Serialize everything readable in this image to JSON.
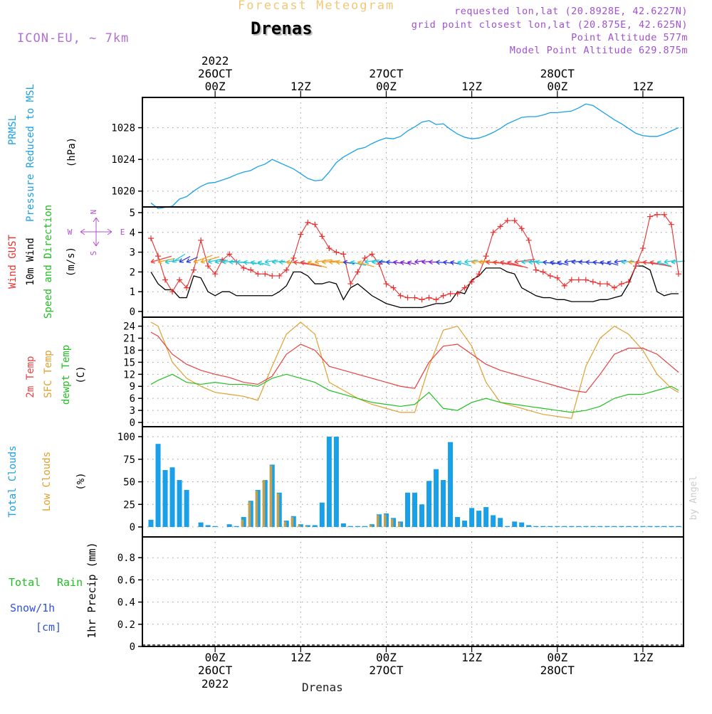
{
  "header": {
    "title": "Forecast Meteogram",
    "station": "Drenas",
    "model": "ICON-EU, ~ 7km",
    "requested": "requested lon,lat (20.8928E, 42.6227N)",
    "grid_point": "grid point closest lon,lat (20.875E, 42.625N)",
    "point_altitude": "Point Altitude 577m",
    "model_altitude": "Model Point Altitude 629.875m",
    "footer_station": "Drenas",
    "credit": "by Angel"
  },
  "time_axis": {
    "labels": [
      "00Z",
      "12Z",
      "00Z",
      "12Z",
      "00Z",
      "12Z"
    ],
    "dates": [
      {
        "year": "2022",
        "day": "26OCT"
      },
      {
        "year": "",
        "day": "27OCT"
      },
      {
        "year": "",
        "day": "28OCT"
      }
    ]
  },
  "colors": {
    "pressure": "#1aa0e8",
    "gust": "#e83030",
    "wind": "#000000",
    "wind_label": "#20c020",
    "temp2m": "#e84040",
    "sfc_temp": "#e0a030",
    "dewpt": "#20c020",
    "total_clouds": "#1aa0e8",
    "low_clouds": "#e0a030",
    "rain": "#20c020",
    "snow": "#3050e0",
    "compass": "#b050d0"
  },
  "chart_data": [
    {
      "type": "line",
      "panel": "pressure",
      "labels": {
        "line1": "PRMSL",
        "line2": "Pressure Reduced to MSL",
        "unit": "(hPa)"
      },
      "x_hours_from_26OCT_00Z": [
        -9,
        -8,
        -6,
        -5,
        -4,
        -3,
        -2,
        -1,
        0,
        1,
        2,
        3,
        4,
        5,
        6,
        7,
        8,
        9,
        10,
        11,
        12,
        13,
        14,
        15,
        16,
        17,
        18,
        19,
        20,
        21,
        22,
        23,
        24,
        25,
        26,
        27,
        28,
        29,
        30,
        31,
        32,
        33,
        34,
        35,
        36,
        37,
        38,
        39,
        40,
        41,
        42,
        43,
        44,
        45,
        46,
        47,
        48,
        49,
        50,
        51,
        52,
        53,
        54,
        55,
        56,
        57,
        58,
        59,
        60,
        61,
        62,
        63,
        64,
        65
      ],
      "y": [
        1018.5,
        1017.8,
        1018.1,
        1019.0,
        1019.3,
        1020.0,
        1020.6,
        1021.0,
        1021.1,
        1021.4,
        1021.7,
        1022.1,
        1022.4,
        1022.6,
        1023.1,
        1023.4,
        1024.0,
        1023.6,
        1023.2,
        1022.8,
        1022.2,
        1021.6,
        1021.3,
        1021.4,
        1022.4,
        1023.6,
        1024.3,
        1024.8,
        1025.3,
        1025.5,
        1026.0,
        1026.4,
        1026.7,
        1026.6,
        1026.9,
        1027.6,
        1028.1,
        1028.7,
        1028.9,
        1028.4,
        1028.5,
        1027.8,
        1027.2,
        1026.8,
        1026.6,
        1026.7,
        1027.0,
        1027.4,
        1027.9,
        1028.5,
        1028.9,
        1029.3,
        1029.4,
        1029.4,
        1029.6,
        1029.9,
        1029.9,
        1030.0,
        1030.1,
        1030.5,
        1031.0,
        1030.8,
        1030.2,
        1029.6,
        1029.0,
        1028.5,
        1027.9,
        1027.3,
        1027.0,
        1026.9,
        1026.9,
        1027.2,
        1027.6,
        1028.0
      ],
      "ylim": [
        1018,
        1032
      ],
      "yticks": [
        1020,
        1024,
        1028
      ]
    },
    {
      "type": "line",
      "panel": "wind",
      "labels": {
        "gust": "Wind GUST",
        "wind": "10m Wind",
        "dir": "Speed and Direction",
        "unit": "(m/s)"
      },
      "compass": {
        "n": "N",
        "s": "S",
        "w": "W",
        "e": "E"
      },
      "x_hours_from_26OCT_00Z": [
        -9,
        -8,
        -7,
        -6,
        -5,
        -4,
        -3,
        -2,
        -1,
        0,
        1,
        2,
        3,
        4,
        5,
        6,
        7,
        8,
        9,
        10,
        11,
        12,
        13,
        14,
        15,
        16,
        17,
        18,
        19,
        20,
        21,
        22,
        23,
        24,
        25,
        26,
        27,
        28,
        29,
        30,
        31,
        32,
        33,
        34,
        35,
        36,
        37,
        38,
        39,
        40,
        41,
        42,
        43,
        44,
        45,
        46,
        47,
        48,
        49,
        50,
        51,
        52,
        53,
        54,
        55,
        56,
        57,
        58,
        59,
        60,
        61,
        62,
        63,
        64,
        65
      ],
      "gust": [
        3.7,
        2.8,
        1.6,
        1.0,
        1.6,
        1.2,
        2.1,
        3.6,
        2.3,
        1.9,
        2.6,
        2.9,
        2.5,
        2.2,
        2.1,
        1.9,
        1.9,
        1.8,
        1.8,
        2.1,
        2.7,
        3.9,
        4.5,
        4.4,
        3.8,
        3.2,
        3.0,
        2.9,
        1.4,
        2.0,
        2.7,
        2.9,
        2.4,
        1.4,
        1.2,
        0.8,
        0.7,
        0.7,
        0.6,
        0.7,
        0.6,
        0.8,
        0.9,
        0.9,
        1.2,
        1.5,
        1.9,
        2.8,
        4.0,
        4.3,
        4.6,
        4.6,
        4.2,
        3.6,
        2.1,
        2.0,
        1.8,
        1.7,
        1.3,
        1.6,
        1.6,
        1.6,
        1.5,
        1.4,
        1.4,
        1.2,
        1.4,
        1.5,
        2.3,
        3.2,
        4.8,
        4.9,
        4.9,
        4.4,
        1.9
      ],
      "wind": [
        2.0,
        1.4,
        1.1,
        1.1,
        0.7,
        0.7,
        1.8,
        1.7,
        1.0,
        0.8,
        1.0,
        1.0,
        0.8,
        0.8,
        0.8,
        0.8,
        0.8,
        0.8,
        1.0,
        1.3,
        2.0,
        2.0,
        1.8,
        1.4,
        1.4,
        1.5,
        1.4,
        0.6,
        1.2,
        1.4,
        1.1,
        0.8,
        0.6,
        0.4,
        0.3,
        0.2,
        0.2,
        0.2,
        0.2,
        0.3,
        0.4,
        0.4,
        0.5,
        1.0,
        0.9,
        1.6,
        1.8,
        2.2,
        2.2,
        2.2,
        2.0,
        1.9,
        1.2,
        1.0,
        0.8,
        0.7,
        0.7,
        0.6,
        0.6,
        0.5,
        0.5,
        0.5,
        0.5,
        0.6,
        0.6,
        0.7,
        0.8,
        1.4,
        2.3,
        2.3,
        2.1,
        1.0,
        0.8,
        0.9,
        0.9
      ],
      "ylim": [
        0,
        5
      ],
      "yticks": [
        0,
        1,
        2,
        3,
        4,
        5
      ]
    },
    {
      "type": "line",
      "panel": "temperature",
      "labels": {
        "t2m": "2m Temp",
        "sfc": "SFC Temp",
        "dew": "dewpt Temp",
        "unit": "(C)"
      },
      "x_hours_from_26OCT_00Z": [
        -9,
        -8,
        -6,
        -4,
        -2,
        0,
        2,
        4,
        6,
        8,
        10,
        12,
        14,
        16,
        18,
        20,
        22,
        24,
        26,
        28,
        30,
        32,
        34,
        36,
        38,
        40,
        42,
        44,
        46,
        48,
        50,
        52,
        54,
        56,
        58,
        60,
        62,
        64,
        65
      ],
      "t2m": [
        22.5,
        21.5,
        17.0,
        14.5,
        13.0,
        12.0,
        11.2,
        10.0,
        9.5,
        11.5,
        17.0,
        19.5,
        18.0,
        14.0,
        13.0,
        12.0,
        11.0,
        10.0,
        9.0,
        8.5,
        15.0,
        19.0,
        19.5,
        17.0,
        14.5,
        13.0,
        12.0,
        11.0,
        10.0,
        9.0,
        8.0,
        7.5,
        12.0,
        17.0,
        18.5,
        18.5,
        17.0,
        14.0,
        12.5
      ],
      "sfc": [
        25.0,
        24.0,
        15.0,
        11.0,
        9.0,
        7.5,
        7.0,
        6.5,
        5.5,
        14.0,
        22.0,
        25.0,
        22.0,
        10.0,
        8.0,
        6.0,
        4.5,
        3.5,
        2.5,
        2.5,
        14.0,
        23.0,
        24.0,
        19.0,
        10.0,
        5.0,
        4.0,
        3.0,
        2.0,
        1.5,
        1.0,
        14.0,
        21.0,
        24.0,
        22.0,
        18.0,
        12.0,
        8.5,
        7.5
      ],
      "dewpt": [
        9.5,
        10.5,
        12.0,
        10.0,
        9.5,
        10.0,
        9.5,
        9.5,
        9.0,
        11.0,
        12.0,
        11.0,
        10.0,
        8.0,
        7.0,
        6.0,
        5.0,
        4.5,
        4.0,
        4.5,
        7.5,
        3.5,
        3.0,
        5.0,
        6.0,
        5.0,
        4.5,
        4.0,
        3.5,
        3.0,
        2.5,
        3.0,
        4.0,
        6.0,
        7.0,
        7.0,
        8.0,
        9.0,
        8.0
      ],
      "ylim": [
        0,
        25
      ],
      "yticks": [
        0,
        3,
        6,
        9,
        12,
        15,
        18,
        21,
        24
      ]
    },
    {
      "type": "bar",
      "panel": "clouds",
      "labels": {
        "total": "Total Clouds",
        "low": "Low Clouds",
        "unit": "(%)"
      },
      "x_hours_from_26OCT_00Z": [
        -9,
        -8,
        -7,
        -6,
        -5,
        -4,
        -3,
        -2,
        -1,
        0,
        1,
        2,
        3,
        4,
        5,
        6,
        7,
        8,
        9,
        10,
        11,
        12,
        13,
        14,
        15,
        16,
        17,
        18,
        19,
        20,
        21,
        22,
        23,
        24,
        25,
        26,
        27,
        28,
        29,
        30,
        31,
        32,
        33,
        34,
        35,
        36,
        37,
        38,
        39,
        40,
        41,
        42,
        43,
        44,
        45,
        46,
        47,
        48,
        49,
        50,
        51,
        52,
        53,
        54,
        55,
        56,
        57,
        58,
        59,
        60,
        61,
        62,
        63,
        64,
        65
      ],
      "total": [
        8,
        92,
        63,
        66,
        52,
        41,
        0,
        5,
        2,
        1,
        0,
        3,
        1,
        11,
        29,
        41,
        52,
        69,
        38,
        7,
        12,
        3,
        2,
        2,
        27,
        100,
        100,
        4,
        1,
        1,
        1,
        3,
        14,
        15,
        10,
        6,
        38,
        38,
        25,
        51,
        64,
        52,
        94,
        11,
        7,
        21,
        18,
        22,
        13,
        10,
        1,
        6,
        5,
        2,
        1,
        1,
        1,
        1,
        1,
        1,
        1,
        1,
        1,
        1,
        1,
        1,
        1,
        1,
        1,
        1,
        1,
        1,
        1,
        1,
        1
      ],
      "low": [
        0,
        0,
        0,
        0,
        0,
        0,
        0,
        0,
        0,
        0,
        0,
        0,
        0,
        8,
        28,
        40,
        52,
        68,
        37,
        6,
        11,
        2,
        1,
        0,
        0,
        0,
        0,
        0,
        0,
        0,
        0,
        2,
        13,
        14,
        9,
        5,
        0,
        0,
        0,
        0,
        0,
        0,
        0,
        0,
        0,
        0,
        0,
        0,
        0,
        0,
        0,
        0,
        0,
        0,
        0,
        0,
        0,
        0,
        0,
        0,
        0,
        0,
        0,
        0,
        0,
        0,
        0,
        0,
        0,
        0,
        0,
        0,
        0,
        0,
        0
      ],
      "ylim": [
        0,
        100
      ],
      "yticks": [
        0,
        25,
        50,
        75,
        100
      ]
    },
    {
      "type": "bar",
      "panel": "precip",
      "labels": {
        "total": "Total",
        "rain": "Rain",
        "snow": "Snow/1h",
        "cm": "[cm]",
        "axis": "1hr Precip (mm)"
      },
      "x_hours_from_26OCT_00Z": [],
      "rain": [],
      "ylim": [
        0,
        1
      ],
      "yticks": [
        0,
        0.2,
        0.4,
        0.6,
        0.8
      ]
    }
  ]
}
